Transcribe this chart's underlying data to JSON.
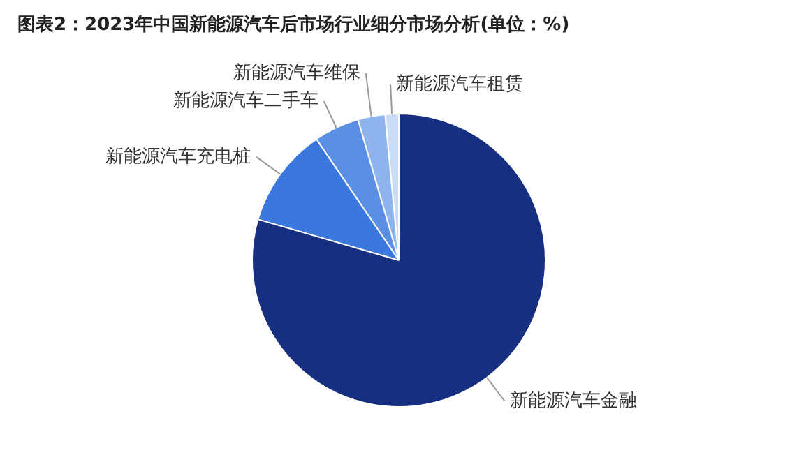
{
  "chart_data": {
    "type": "pie",
    "title": "图表2：2023年中国新能源汽车后市场行业细分市场分析(单位：%)",
    "categories": [
      "新能源汽车租赁",
      "新能源汽车维保",
      "新能源汽车二手车",
      "新能源汽车充电桩",
      "新能源汽车金融"
    ],
    "values": [
      1.5,
      3,
      5,
      11,
      79.5
    ],
    "colors": [
      "#c9dbf5",
      "#8fb3ec",
      "#5b8fe4",
      "#3b78de",
      "#162f80"
    ]
  }
}
